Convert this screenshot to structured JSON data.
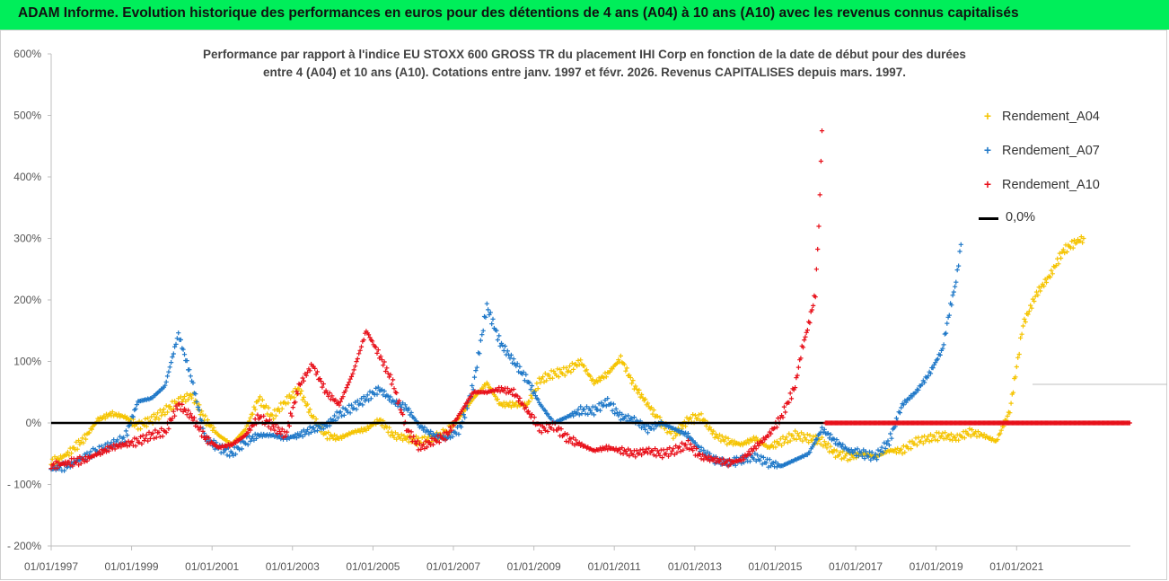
{
  "header": {
    "title": "ADAM Informe. Evolution historique des performances en euros pour des détentions de 4 ans (A04) à 10 ans (A10) avec les revenus connus capitalisés"
  },
  "chart_data": {
    "type": "scatter",
    "title_line1": "Performance par rapport à l'indice EU STOXX 600 GROSS TR  du placement IHI Corp en fonction de la date de début pour des durées",
    "title_line2": "entre 4 (A04) et 10 ans (A10). Cotations entre janv. 1997 et févr. 2026. Revenus CAPITALISES depuis mars. 1997.",
    "x_tick_labels": [
      "01/01/1997",
      "01/01/1999",
      "01/01/2001",
      "01/01/2003",
      "01/01/2005",
      "01/01/2007",
      "01/01/2009",
      "01/01/2011",
      "01/01/2013",
      "01/01/2015",
      "01/01/2017",
      "01/01/2019",
      "01/01/2021"
    ],
    "x_range": [
      "1997-01-01",
      "2023-10-31"
    ],
    "y_tick_labels": [
      "600%",
      "500%",
      "400%",
      "300%",
      "200%",
      "100%",
      "0%",
      "- 100%",
      "- 200%"
    ],
    "y_range": [
      -200,
      600
    ],
    "y_unit": "%",
    "grid": "off",
    "legend_position": "top-right",
    "series": [
      {
        "name": "Rendement_A04",
        "color": "#f5c400",
        "marker": "+",
        "points": [
          [
            "1997-01-01",
            -65
          ],
          [
            "1997-06-01",
            -50
          ],
          [
            "1997-11-01",
            -25
          ],
          [
            "1998-03-01",
            5
          ],
          [
            "1998-07-01",
            15
          ],
          [
            "1998-11-01",
            10
          ],
          [
            "1999-03-01",
            -5
          ],
          [
            "1999-07-01",
            5
          ],
          [
            "1999-11-01",
            20
          ],
          [
            "2000-03-01",
            35
          ],
          [
            "2000-07-01",
            45
          ],
          [
            "2000-11-01",
            5
          ],
          [
            "2001-03-01",
            -20
          ],
          [
            "2001-07-01",
            -35
          ],
          [
            "2001-11-01",
            -10
          ],
          [
            "2002-03-01",
            40
          ],
          [
            "2002-07-01",
            10
          ],
          [
            "2002-11-01",
            35
          ],
          [
            "2003-03-01",
            55
          ],
          [
            "2003-07-01",
            10
          ],
          [
            "2003-11-01",
            -20
          ],
          [
            "2004-03-01",
            -25
          ],
          [
            "2004-07-01",
            -15
          ],
          [
            "2004-11-01",
            -10
          ],
          [
            "2005-03-01",
            5
          ],
          [
            "2005-07-01",
            -20
          ],
          [
            "2005-11-01",
            -25
          ],
          [
            "2006-03-01",
            -30
          ],
          [
            "2006-07-01",
            -25
          ],
          [
            "2006-11-01",
            -15
          ],
          [
            "2007-03-01",
            10
          ],
          [
            "2007-07-01",
            40
          ],
          [
            "2007-11-01",
            65
          ],
          [
            "2008-03-01",
            30
          ],
          [
            "2008-07-01",
            30
          ],
          [
            "2008-11-01",
            30
          ],
          [
            "2009-03-01",
            70
          ],
          [
            "2009-07-01",
            80
          ],
          [
            "2009-11-01",
            85
          ],
          [
            "2010-03-01",
            100
          ],
          [
            "2010-07-01",
            65
          ],
          [
            "2010-11-01",
            80
          ],
          [
            "2011-03-01",
            105
          ],
          [
            "2011-07-01",
            60
          ],
          [
            "2011-11-01",
            30
          ],
          [
            "2012-03-01",
            0
          ],
          [
            "2012-07-01",
            -20
          ],
          [
            "2012-11-01",
            5
          ],
          [
            "2013-03-01",
            10
          ],
          [
            "2013-07-01",
            -20
          ],
          [
            "2013-11-01",
            -30
          ],
          [
            "2014-03-01",
            -35
          ],
          [
            "2014-07-01",
            -25
          ],
          [
            "2014-11-01",
            -40
          ],
          [
            "2015-03-01",
            -30
          ],
          [
            "2015-07-01",
            -20
          ],
          [
            "2015-11-01",
            -25
          ],
          [
            "2016-03-01",
            -30
          ],
          [
            "2016-07-01",
            -50
          ],
          [
            "2016-11-01",
            -55
          ],
          [
            "2017-03-01",
            -50
          ],
          [
            "2017-07-01",
            -55
          ],
          [
            "2017-11-01",
            -45
          ],
          [
            "2018-03-01",
            -45
          ],
          [
            "2018-07-01",
            -30
          ],
          [
            "2018-11-01",
            -25
          ],
          [
            "2019-03-01",
            -20
          ],
          [
            "2019-07-01",
            -25
          ],
          [
            "2019-11-01",
            -15
          ],
          [
            "2020-03-01",
            -20
          ],
          [
            "2020-07-01",
            -30
          ],
          [
            "2020-11-01",
            20
          ],
          [
            "2021-01-01",
            90
          ],
          [
            "2021-03-01",
            160
          ],
          [
            "2021-07-01",
            210
          ],
          [
            "2021-11-01",
            240
          ],
          [
            "2022-03-01",
            280
          ],
          [
            "2022-07-01",
            295
          ],
          [
            "2022-09-01",
            300
          ]
        ]
      },
      {
        "name": "Rendement_A07",
        "color": "#1f78c8",
        "marker": "+",
        "points": [
          [
            "1997-01-01",
            -75
          ],
          [
            "1997-06-01",
            -70
          ],
          [
            "1997-11-01",
            -55
          ],
          [
            "1998-03-01",
            -45
          ],
          [
            "1998-07-01",
            -35
          ],
          [
            "1998-11-01",
            -25
          ],
          [
            "1999-03-01",
            35
          ],
          [
            "1999-07-01",
            40
          ],
          [
            "1999-11-01",
            60
          ],
          [
            "2000-03-01",
            145
          ],
          [
            "2000-07-01",
            70
          ],
          [
            "2000-11-01",
            -25
          ],
          [
            "2001-03-01",
            -40
          ],
          [
            "2001-07-01",
            -50
          ],
          [
            "2001-11-01",
            -30
          ],
          [
            "2002-03-01",
            -20
          ],
          [
            "2002-07-01",
            -20
          ],
          [
            "2002-11-01",
            -25
          ],
          [
            "2003-03-01",
            -20
          ],
          [
            "2003-07-01",
            -10
          ],
          [
            "2003-11-01",
            -5
          ],
          [
            "2004-03-01",
            15
          ],
          [
            "2004-07-01",
            25
          ],
          [
            "2004-11-01",
            40
          ],
          [
            "2005-03-01",
            55
          ],
          [
            "2005-07-01",
            35
          ],
          [
            "2005-11-01",
            25
          ],
          [
            "2006-03-01",
            -5
          ],
          [
            "2006-07-01",
            -20
          ],
          [
            "2006-11-01",
            -25
          ],
          [
            "2007-03-01",
            -10
          ],
          [
            "2007-07-01",
            60
          ],
          [
            "2007-11-01",
            190
          ],
          [
            "2008-03-01",
            130
          ],
          [
            "2008-07-01",
            100
          ],
          [
            "2008-11-01",
            70
          ],
          [
            "2009-03-01",
            30
          ],
          [
            "2009-07-01",
            0
          ],
          [
            "2009-11-01",
            10
          ],
          [
            "2010-03-01",
            20
          ],
          [
            "2010-07-01",
            20
          ],
          [
            "2010-11-01",
            35
          ],
          [
            "2011-03-01",
            10
          ],
          [
            "2011-07-01",
            5
          ],
          [
            "2011-11-01",
            -10
          ],
          [
            "2012-03-01",
            0
          ],
          [
            "2012-07-01",
            -10
          ],
          [
            "2012-11-01",
            -20
          ],
          [
            "2013-03-01",
            -45
          ],
          [
            "2013-07-01",
            -60
          ],
          [
            "2013-11-01",
            -65
          ],
          [
            "2014-03-01",
            -60
          ],
          [
            "2014-07-01",
            -55
          ],
          [
            "2014-11-01",
            -65
          ],
          [
            "2015-03-01",
            -70
          ],
          [
            "2015-07-01",
            -60
          ],
          [
            "2015-11-01",
            -50
          ],
          [
            "2016-03-01",
            -10
          ],
          [
            "2016-07-01",
            -30
          ],
          [
            "2016-11-01",
            -45
          ],
          [
            "2017-03-01",
            -50
          ],
          [
            "2017-07-01",
            -55
          ],
          [
            "2017-11-01",
            -30
          ],
          [
            "2018-03-01",
            30
          ],
          [
            "2018-07-01",
            50
          ],
          [
            "2018-11-01",
            80
          ],
          [
            "2019-03-01",
            120
          ],
          [
            "2019-05-01",
            180
          ],
          [
            "2019-07-01",
            230
          ],
          [
            "2019-08-15",
            290
          ]
        ]
      },
      {
        "name": "Rendement_A10",
        "color": "#e8101a",
        "marker": "+",
        "points": [
          [
            "1997-01-01",
            -70
          ],
          [
            "1997-06-01",
            -65
          ],
          [
            "1997-11-01",
            -60
          ],
          [
            "1998-03-01",
            -50
          ],
          [
            "1998-07-01",
            -40
          ],
          [
            "1998-11-01",
            -35
          ],
          [
            "1999-03-01",
            -30
          ],
          [
            "1999-07-01",
            -20
          ],
          [
            "1999-11-01",
            -15
          ],
          [
            "2000-03-01",
            30
          ],
          [
            "2000-07-01",
            10
          ],
          [
            "2000-11-01",
            -25
          ],
          [
            "2001-03-01",
            -40
          ],
          [
            "2001-07-01",
            -35
          ],
          [
            "2001-11-01",
            -20
          ],
          [
            "2002-03-01",
            10
          ],
          [
            "2002-07-01",
            -5
          ],
          [
            "2002-11-01",
            -20
          ],
          [
            "2003-03-01",
            60
          ],
          [
            "2003-07-01",
            95
          ],
          [
            "2003-11-01",
            50
          ],
          [
            "2004-03-01",
            30
          ],
          [
            "2004-07-01",
            80
          ],
          [
            "2004-11-01",
            150
          ],
          [
            "2005-03-01",
            110
          ],
          [
            "2005-07-01",
            65
          ],
          [
            "2005-11-01",
            -10
          ],
          [
            "2006-03-01",
            -40
          ],
          [
            "2006-07-01",
            -30
          ],
          [
            "2006-11-01",
            -20
          ],
          [
            "2007-03-01",
            15
          ],
          [
            "2007-07-01",
            50
          ],
          [
            "2007-11-01",
            50
          ],
          [
            "2008-03-01",
            55
          ],
          [
            "2008-07-01",
            50
          ],
          [
            "2008-11-01",
            20
          ],
          [
            "2009-03-01",
            -10
          ],
          [
            "2009-07-01",
            -5
          ],
          [
            "2009-11-01",
            -25
          ],
          [
            "2010-03-01",
            -35
          ],
          [
            "2010-07-01",
            -45
          ],
          [
            "2010-11-01",
            -40
          ],
          [
            "2011-03-01",
            -45
          ],
          [
            "2011-07-01",
            -50
          ],
          [
            "2011-11-01",
            -45
          ],
          [
            "2012-03-01",
            -50
          ],
          [
            "2012-07-01",
            -45
          ],
          [
            "2012-11-01",
            -35
          ],
          [
            "2013-03-01",
            -55
          ],
          [
            "2013-07-01",
            -60
          ],
          [
            "2013-11-01",
            -65
          ],
          [
            "2014-03-01",
            -60
          ],
          [
            "2014-07-01",
            -40
          ],
          [
            "2014-11-01",
            -20
          ],
          [
            "2015-03-01",
            10
          ],
          [
            "2015-07-01",
            60
          ],
          [
            "2015-09-01",
            120
          ],
          [
            "2015-11-01",
            160
          ],
          [
            "2016-01-01",
            210
          ],
          [
            "2016-02-01",
            320
          ],
          [
            "2016-03-01",
            475
          ]
        ],
        "zero_from": "2016-04-01",
        "zero_to": "2023-10-31"
      },
      {
        "name": "0,0%",
        "color": "#000000",
        "type": "line",
        "points": [
          [
            "1997-01-01",
            0
          ],
          [
            "2023-10-31",
            0
          ]
        ]
      }
    ]
  }
}
